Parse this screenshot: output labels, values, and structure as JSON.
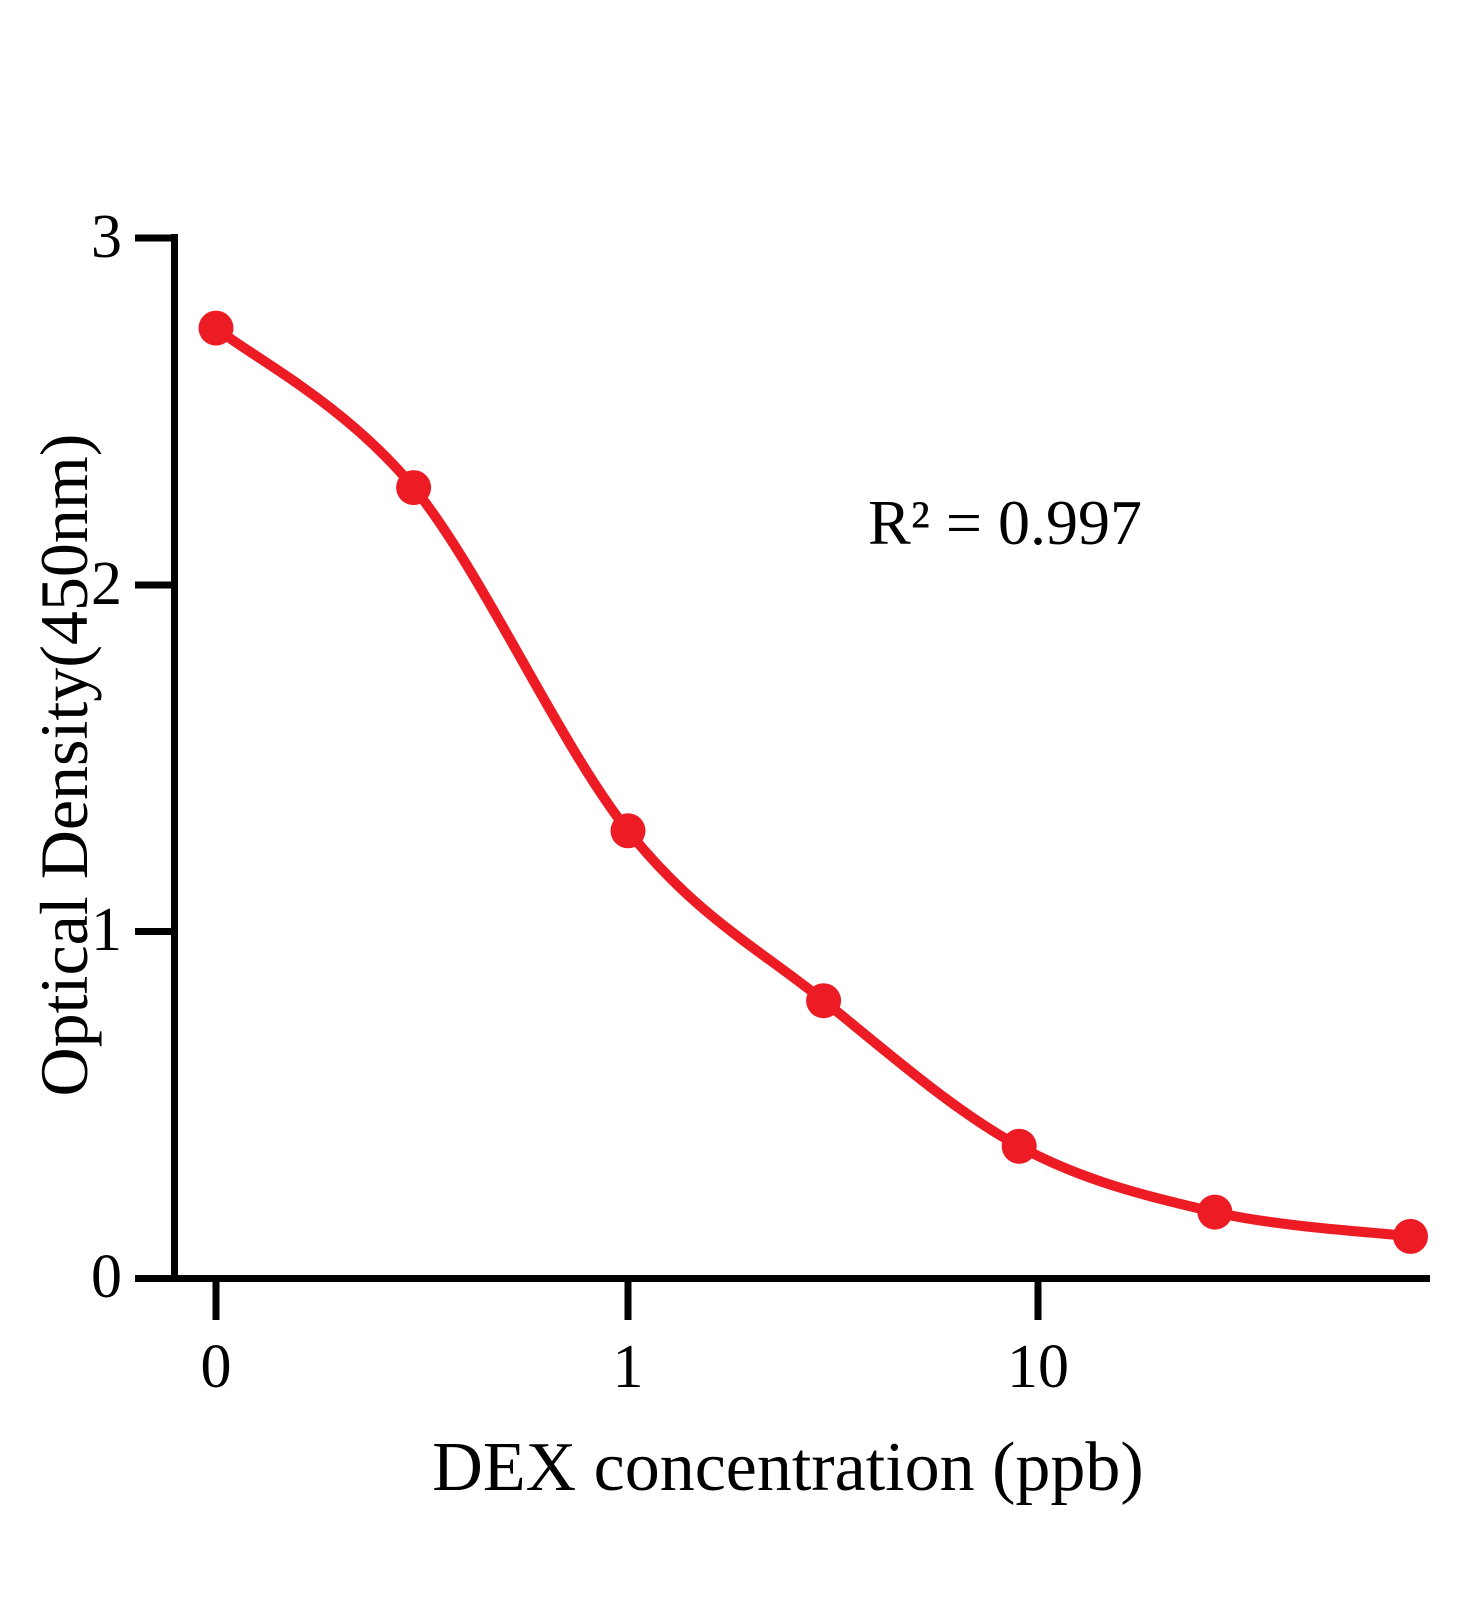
{
  "chart_data": {
    "type": "scatter",
    "description": "ELISA standard curve: red data points with smooth fitted sigmoid curve on a log-scale x axis (zero plotted at left end of axis)",
    "title": "",
    "xlabel": "DEX concentration (ppb)",
    "ylabel": "Optical Density(450nm)",
    "annotation": "R² = 0.997",
    "x_scale": "log10 (value 0 drawn at the left end before the decade ticks)",
    "ylim": [
      0,
      3
    ],
    "x_tick_labels": [
      "0",
      "1",
      "10"
    ],
    "y_tick_labels": [
      "3",
      "2",
      "1",
      "0"
    ],
    "points": [
      {
        "x": 0,
        "y": 2.74
      },
      {
        "x": 0.3,
        "y": 2.28
      },
      {
        "x": 1,
        "y": 1.29
      },
      {
        "x": 3,
        "y": 0.8
      },
      {
        "x": 9,
        "y": 0.38
      },
      {
        "x": 27,
        "y": 0.19
      },
      {
        "x": 81,
        "y": 0.12
      }
    ],
    "series_color": "#ED1C24",
    "axis_color": "#000000",
    "grid": false,
    "legend": "none"
  }
}
